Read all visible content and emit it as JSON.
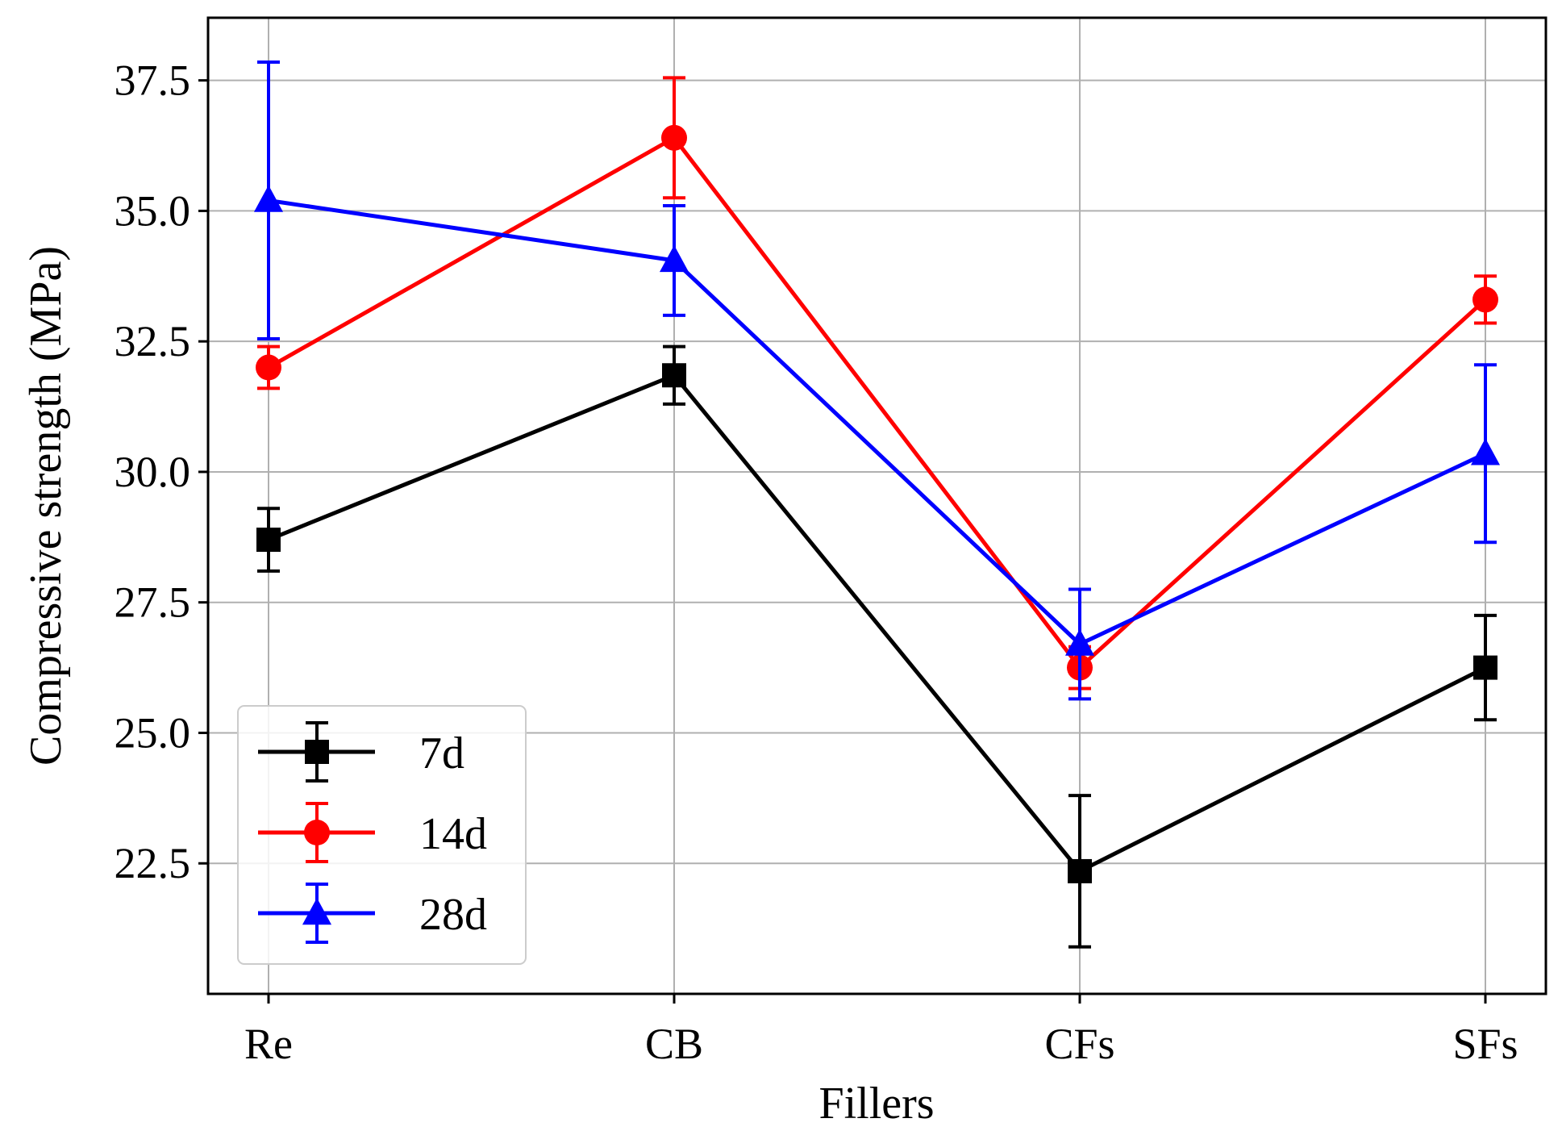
{
  "chart_data": {
    "type": "line",
    "xlabel": "Fillers",
    "ylabel": "Compressive strength (MPa)",
    "categories": [
      "Re",
      "CB",
      "CFs",
      "SFs"
    ],
    "ylim": [
      20.0,
      38.7
    ],
    "yticks": [
      22.5,
      25.0,
      27.5,
      30.0,
      32.5,
      35.0,
      37.5
    ],
    "ytick_labels": [
      "22.5",
      "25.0",
      "27.5",
      "30.0",
      "32.5",
      "35.0",
      "37.5"
    ],
    "grid": true,
    "legend_position": "lower-left",
    "series": [
      {
        "name": "7d",
        "color": "#000000",
        "marker": "square",
        "values": [
          28.7,
          31.85,
          22.35,
          26.25
        ],
        "err_low": [
          0.6,
          0.55,
          1.45,
          1.0
        ],
        "err_high": [
          0.6,
          0.55,
          1.45,
          1.0
        ]
      },
      {
        "name": "14d",
        "color": "#ff0000",
        "marker": "circle",
        "values": [
          32.0,
          36.4,
          26.25,
          33.3
        ],
        "err_low": [
          0.4,
          1.15,
          0.4,
          0.45
        ],
        "err_high": [
          0.4,
          1.15,
          0.4,
          0.45
        ]
      },
      {
        "name": "28d",
        "color": "#0000ff",
        "marker": "triangle",
        "values": [
          35.2,
          34.05,
          26.7,
          30.35
        ],
        "err_low": [
          2.65,
          1.05,
          1.05,
          1.7
        ],
        "err_high": [
          2.65,
          1.05,
          1.05,
          1.7
        ]
      }
    ]
  }
}
